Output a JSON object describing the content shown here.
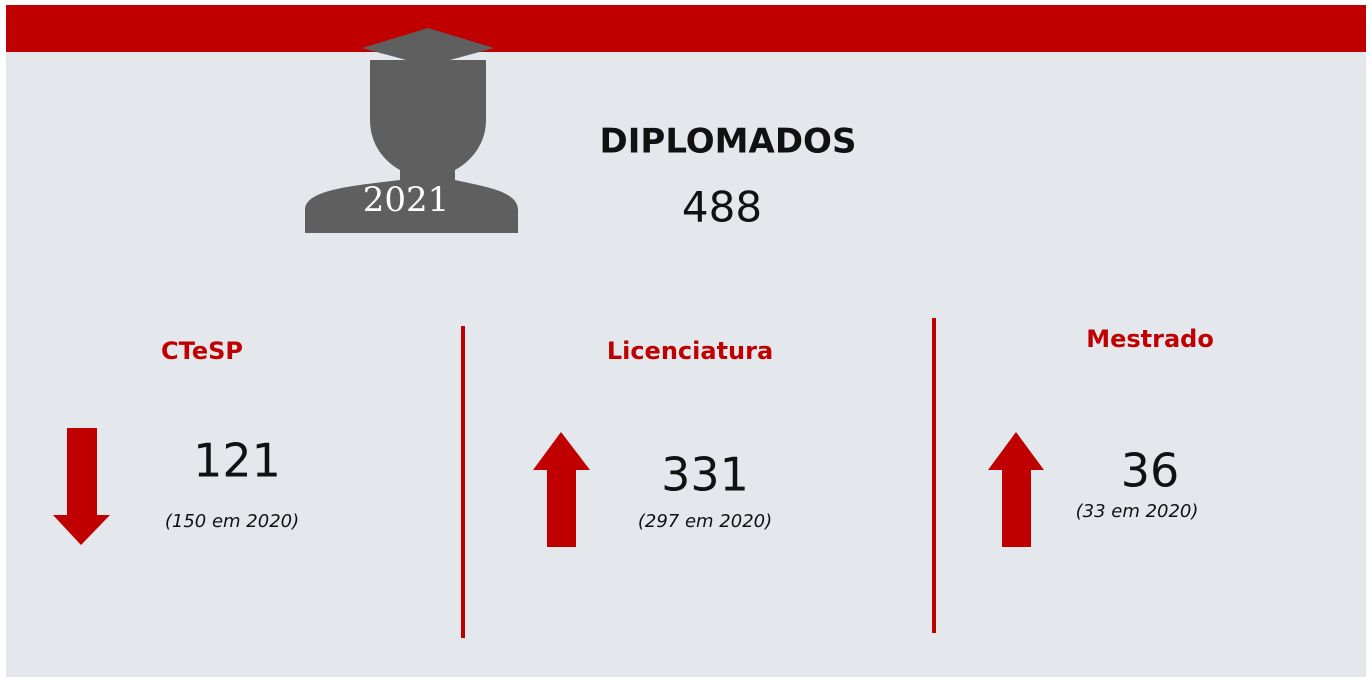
{
  "header": {
    "year": "2021",
    "title": "DIPLOMADOS",
    "total": "488"
  },
  "items": [
    {
      "label": "CTeSP",
      "value": "121",
      "previous": "(150 em 2020)"
    },
    {
      "label": "Licenciatura",
      "value": "331",
      "previous": "(297 em 2020)"
    },
    {
      "label": "Mestrado",
      "value": "36",
      "previous": "(33 em 2020)"
    }
  ]
}
